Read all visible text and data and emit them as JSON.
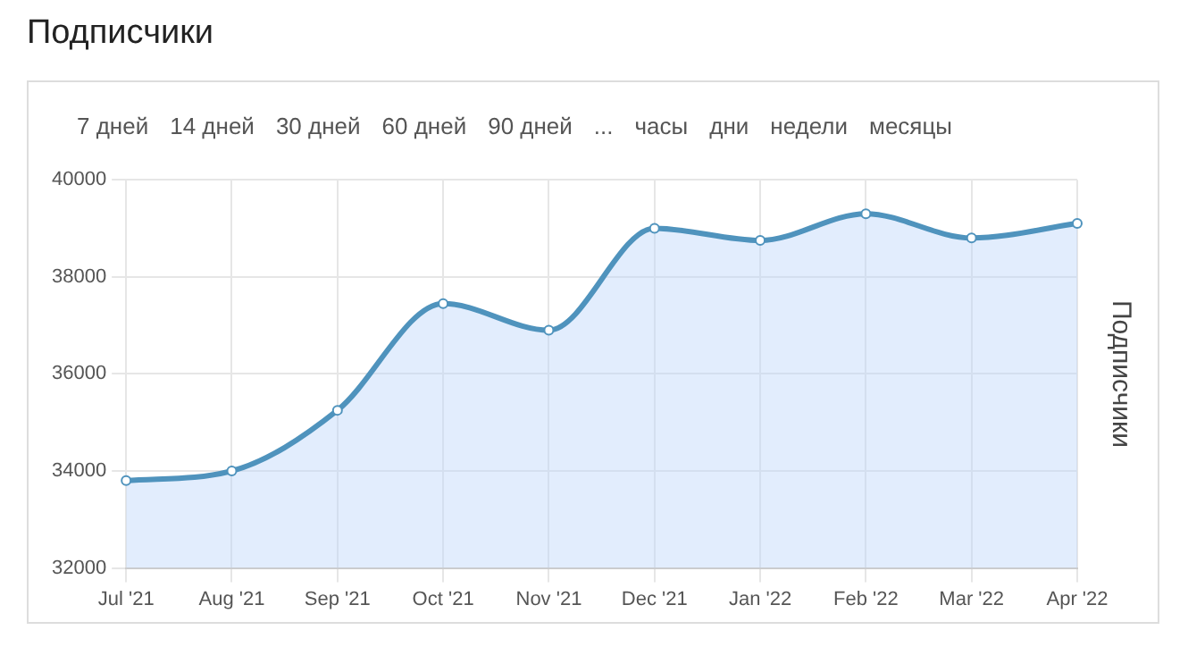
{
  "chart_data": {
    "type": "area",
    "title": "Подписчики",
    "ylabel": "Подписчики",
    "categories": [
      "Jul '21",
      "Aug '21",
      "Sep '21",
      "Oct '21",
      "Nov '21",
      "Dec '21",
      "Jan '22",
      "Feb '22",
      "Mar '22",
      "Apr '22"
    ],
    "series": [
      {
        "color": "#4f93bd",
        "values": [
          33800,
          34000,
          35250,
          37450,
          36900,
          39000,
          38750,
          39300,
          38800,
          39100
        ]
      }
    ],
    "ylim": [
      32000,
      40000
    ],
    "yticks": [
      32000,
      34000,
      36000,
      38000,
      40000
    ],
    "grid": true,
    "legend": false,
    "marker": "circle",
    "annotations": [
      "7 дней",
      "14 дней",
      "30 дней",
      "60 дней",
      "90 дней",
      "...",
      "часы",
      "дни",
      "недели",
      "месяцы"
    ]
  }
}
